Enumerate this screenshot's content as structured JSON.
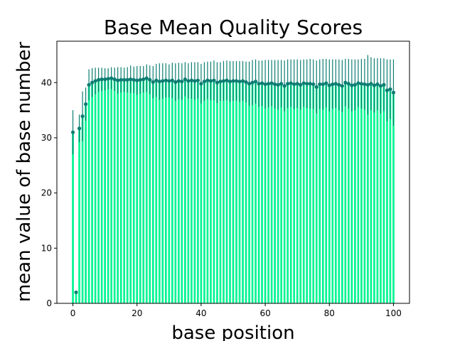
{
  "chart_data": {
    "type": "bar",
    "title": "Base Mean Quality Scores",
    "xlabel": "base position",
    "ylabel": "mean value of base number",
    "xlim": [
      -5,
      105
    ],
    "ylim": [
      0,
      47.5
    ],
    "xticks": [
      0,
      20,
      40,
      60,
      80,
      100
    ],
    "yticks": [
      0,
      10,
      20,
      30,
      40
    ],
    "grid": false,
    "colors": {
      "bar": "#00f592",
      "marker": "#0b7d72",
      "errorbar": "#0b7d72"
    },
    "x": [
      0,
      1,
      2,
      3,
      4,
      5,
      6,
      7,
      8,
      9,
      10,
      11,
      12,
      13,
      14,
      15,
      16,
      17,
      18,
      19,
      20,
      21,
      22,
      23,
      24,
      25,
      26,
      27,
      28,
      29,
      30,
      31,
      32,
      33,
      34,
      35,
      36,
      37,
      38,
      39,
      40,
      41,
      42,
      43,
      44,
      45,
      46,
      47,
      48,
      49,
      50,
      51,
      52,
      53,
      54,
      55,
      56,
      57,
      58,
      59,
      60,
      61,
      62,
      63,
      64,
      65,
      66,
      67,
      68,
      69,
      70,
      71,
      72,
      73,
      74,
      75,
      76,
      77,
      78,
      79,
      80,
      81,
      82,
      83,
      84,
      85,
      86,
      87,
      88,
      89,
      90,
      91,
      92,
      93,
      94,
      95,
      96,
      97,
      98,
      99,
      100
    ],
    "values": [
      31.0,
      2.0,
      31.7,
      33.9,
      36.1,
      39.6,
      40.0,
      40.3,
      40.5,
      40.6,
      40.6,
      40.7,
      40.8,
      40.6,
      40.4,
      40.5,
      40.5,
      40.5,
      40.6,
      40.5,
      40.4,
      40.5,
      40.6,
      40.8,
      40.5,
      40.1,
      40.4,
      40.2,
      40.3,
      40.4,
      40.3,
      40.4,
      40.1,
      40.3,
      40.2,
      40.6,
      40.3,
      40.4,
      40.3,
      40.4,
      39.8,
      40.2,
      40.4,
      40.3,
      40.4,
      40.0,
      40.2,
      40.3,
      40.4,
      40.2,
      40.3,
      40.3,
      40.2,
      40.3,
      40.1,
      39.8,
      40.0,
      40.2,
      39.8,
      39.9,
      39.7,
      39.8,
      39.9,
      39.7,
      39.6,
      39.8,
      39.4,
      39.8,
      39.9,
      39.7,
      39.8,
      39.6,
      39.9,
      39.8,
      39.8,
      39.7,
      39.2,
      39.7,
      39.7,
      39.9,
      39.5,
      39.7,
      39.8,
      39.6,
      39.4,
      40.0,
      39.8,
      39.5,
      39.6,
      39.9,
      39.8,
      39.7,
      39.6,
      39.8,
      39.5,
      39.7,
      39.4,
      39.6,
      38.6,
      38.8,
      38.2
    ],
    "errors": [
      4.0,
      0.0,
      2.5,
      4.5,
      3.0,
      2.8,
      2.6,
      2.4,
      2.2,
      2.1,
      2.0,
      1.9,
      2.0,
      2.1,
      2.4,
      2.3,
      2.2,
      2.3,
      2.5,
      2.4,
      2.6,
      2.5,
      2.4,
      2.5,
      2.6,
      2.9,
      3.0,
      3.3,
      3.2,
      3.1,
      3.0,
      3.2,
      3.4,
      3.3,
      3.3,
      3.1,
      3.2,
      3.3,
      3.4,
      3.3,
      3.6,
      3.5,
      3.4,
      3.5,
      3.6,
      3.7,
      3.5,
      3.6,
      3.6,
      3.7,
      3.6,
      3.6,
      3.7,
      3.6,
      3.7,
      4.0,
      4.1,
      4.0,
      4.2,
      4.1,
      4.4,
      4.3,
      4.2,
      4.4,
      4.5,
      4.3,
      4.6,
      4.4,
      4.3,
      4.5,
      4.4,
      4.5,
      4.3,
      4.4,
      4.5,
      4.5,
      4.8,
      4.5,
      4.6,
      4.4,
      4.7,
      4.5,
      4.4,
      4.6,
      4.7,
      4.3,
      4.5,
      4.7,
      4.6,
      4.3,
      4.5,
      4.6,
      5.4,
      4.8,
      4.9,
      4.7,
      5.0,
      4.8,
      5.6,
      5.4,
      6.0
    ]
  }
}
